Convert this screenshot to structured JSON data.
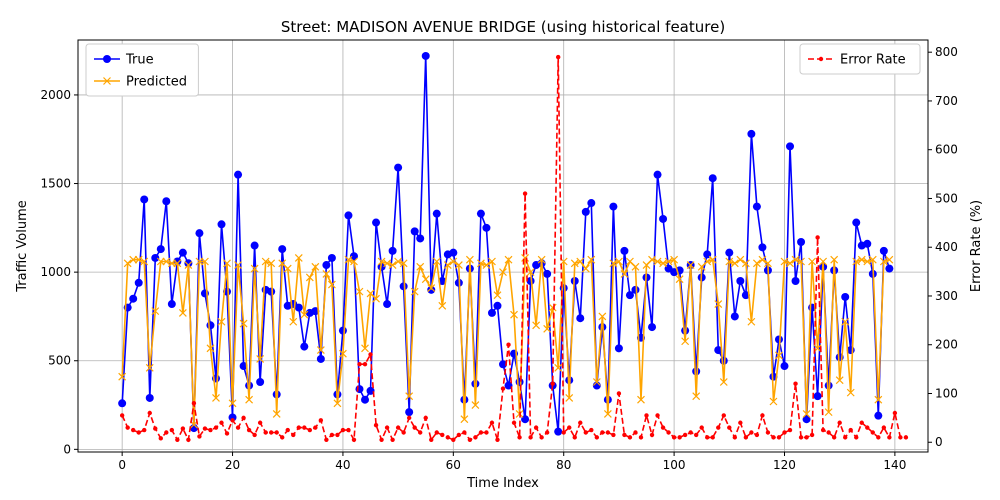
{
  "chart_data": {
    "type": "line",
    "title": "Street: MADISON AVENUE BRIDGE (using historical feature)",
    "xlabel": "Time Index",
    "ylabel": "Traffic Volume",
    "y2label": "Error Rate (%)",
    "xlim": [
      -8,
      146
    ],
    "ylim": [
      -15,
      2310
    ],
    "y2lim": [
      -20,
      825
    ],
    "xticks": [
      0,
      20,
      40,
      60,
      80,
      100,
      120,
      140
    ],
    "yticks": [
      0,
      500,
      1000,
      1500,
      2000
    ],
    "y2ticks": [
      0,
      100,
      200,
      300,
      400,
      500,
      600,
      700,
      800
    ],
    "grid": true,
    "legend_left_position": "upper-left",
    "legend_right_position": "upper-right",
    "colors": {
      "true": "#0000ff",
      "predicted": "#ffa500",
      "error": "#ff0000",
      "grid": "#b0b0b0"
    },
    "series": [
      {
        "name": "True",
        "axis": "left",
        "marker": "circle",
        "values": [
          260,
          800,
          850,
          940,
          1410,
          290,
          1080,
          1130,
          1400,
          820,
          1060,
          1110,
          1050,
          120,
          1220,
          880,
          700,
          400,
          1270,
          890,
          180,
          1550,
          470,
          360,
          1150,
          380,
          900,
          890,
          310,
          1130,
          810,
          820,
          800,
          580,
          770,
          780,
          510,
          1040,
          1080,
          310,
          670,
          1320,
          1090,
          340,
          280,
          330,
          1280,
          1030,
          820,
          1120,
          1590,
          920,
          210,
          1230,
          1190,
          2220,
          900,
          1330,
          950,
          1100,
          1110,
          940,
          280,
          1020,
          370,
          1330,
          1250,
          770,
          810,
          480,
          360,
          540,
          380,
          170,
          950,
          1040,
          1050,
          990,
          360,
          100,
          910,
          390,
          950,
          740,
          1340,
          1390,
          360,
          690,
          280,
          1370,
          570,
          1120,
          870,
          900,
          630,
          970,
          690,
          1550,
          1300,
          1020,
          1000,
          1010,
          670,
          1040,
          440,
          970,
          1100,
          1530,
          560,
          500,
          1110,
          750,
          950,
          870,
          1780,
          1370,
          1140,
          1010,
          410,
          620,
          470,
          1710,
          950,
          1170,
          170,
          800,
          300,
          1030,
          360,
          1010,
          520,
          860,
          560,
          1280,
          1150,
          1160,
          990,
          190,
          1120,
          1020
        ]
      },
      {
        "name": "Predicted",
        "axis": "left",
        "marker": "x",
        "values": [
          410,
          1050,
          1070,
          1070,
          1060,
          460,
          780,
          1060,
          1060,
          1050,
          1050,
          770,
          1040,
          140,
          1060,
          1060,
          570,
          290,
          720,
          1050,
          260,
          1040,
          710,
          280,
          1020,
          510,
          1060,
          1050,
          200,
          1050,
          1020,
          720,
          1080,
          760,
          970,
          1030,
          560,
          990,
          930,
          260,
          540,
          1070,
          1060,
          890,
          570,
          880,
          850,
          1060,
          1050,
          1040,
          1060,
          1050,
          300,
          890,
          1030,
          960,
          910,
          1060,
          810,
          1040,
          1060,
          1040,
          170,
          1070,
          250,
          1050,
          1040,
          1060,
          870,
          1000,
          1070,
          760,
          200,
          1080,
          1000,
          700,
          1070,
          680,
          800,
          460,
          1060,
          290,
          1050,
          1060,
          1020,
          1070,
          380,
          750,
          200,
          1050,
          1060,
          990,
          1060,
          1030,
          280,
          1040,
          1070,
          1060,
          1050,
          1060,
          1070,
          960,
          610,
          1040,
          300,
          1030,
          1060,
          1070,
          820,
          380,
          1060,
          1050,
          1070,
          1050,
          720,
          1050,
          1070,
          1050,
          270,
          530,
          1060,
          1050,
          1070,
          1060,
          200,
          1060,
          570,
          1060,
          210,
          1070,
          390,
          720,
          320,
          1060,
          1070,
          1060,
          1070,
          280,
          1060,
          1070
        ]
      },
      {
        "name": "Error Rate",
        "axis": "right",
        "marker": "dot",
        "dashed": true,
        "values": [
          55,
          30,
          25,
          20,
          25,
          60,
          28,
          8,
          20,
          25,
          5,
          28,
          5,
          80,
          12,
          28,
          25,
          30,
          40,
          18,
          45,
          30,
          50,
          25,
          15,
          40,
          20,
          20,
          20,
          10,
          25,
          15,
          30,
          30,
          25,
          30,
          45,
          5,
          15,
          15,
          25,
          25,
          5,
          160,
          160,
          180,
          35,
          5,
          30,
          5,
          30,
          20,
          50,
          30,
          20,
          50,
          5,
          20,
          15,
          10,
          5,
          15,
          20,
          5,
          10,
          20,
          20,
          40,
          5,
          110,
          200,
          40,
          10,
          510,
          10,
          30,
          10,
          20,
          120,
          790,
          20,
          30,
          10,
          40,
          20,
          25,
          10,
          20,
          20,
          15,
          100,
          15,
          10,
          20,
          10,
          55,
          15,
          55,
          30,
          20,
          10,
          10,
          15,
          20,
          15,
          30,
          10,
          10,
          30,
          55,
          30,
          10,
          40,
          10,
          20,
          15,
          55,
          20,
          10,
          10,
          20,
          25,
          120,
          10,
          10,
          15,
          420,
          25,
          20,
          10,
          40,
          10,
          25,
          10,
          40,
          30,
          20,
          10,
          30,
          10,
          60,
          10,
          10
        ]
      }
    ]
  }
}
